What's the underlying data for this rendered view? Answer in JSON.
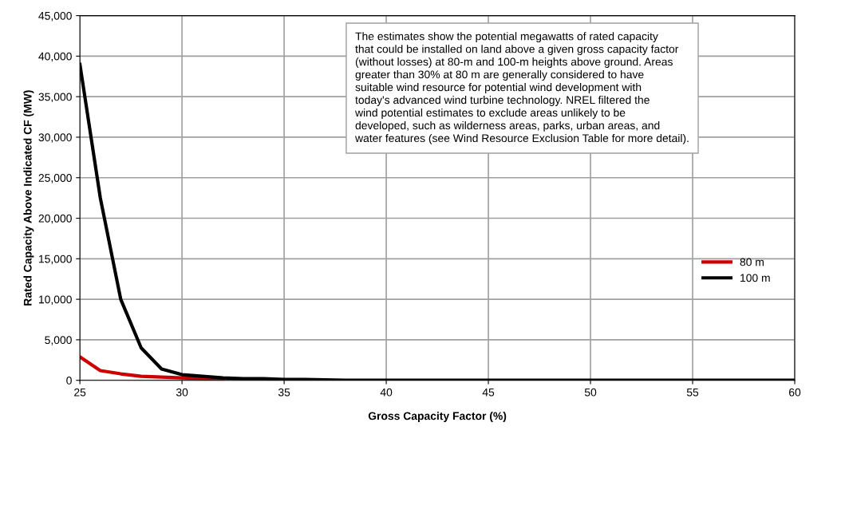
{
  "chart_data": {
    "type": "line",
    "xlabel": "Gross Capacity Factor (%)",
    "ylabel": "Rated Capacity Above Indicated CF (MW)",
    "x": [
      25,
      26,
      27,
      28,
      29,
      30,
      31,
      32,
      33,
      34,
      35,
      36,
      38,
      40,
      45,
      50,
      55,
      60
    ],
    "series": [
      {
        "name": "80 m",
        "color": "#cc0000",
        "values": [
          2900,
          1200,
          800,
          500,
          400,
          300,
          200,
          200,
          null,
          null,
          null,
          null,
          null,
          null,
          null,
          null,
          null,
          null
        ]
      },
      {
        "name": "100 m",
        "color": "#000000",
        "values": [
          39000,
          22500,
          10000,
          4000,
          1400,
          700,
          500,
          300,
          200,
          200,
          100,
          100,
          0,
          0,
          0,
          0,
          0,
          0
        ]
      }
    ],
    "xlim": [
      25,
      60
    ],
    "xticks": [
      25,
      30,
      35,
      40,
      45,
      50,
      55,
      60
    ],
    "ylim": [
      0,
      45000
    ],
    "yticks": [
      {
        "value": 0,
        "label": "0"
      },
      {
        "value": 5000,
        "label": "5,000"
      },
      {
        "value": 10000,
        "label": "10,000"
      },
      {
        "value": 15000,
        "label": "15,000"
      },
      {
        "value": 20000,
        "label": "20,000"
      },
      {
        "value": 25000,
        "label": "25,000"
      },
      {
        "value": 30000,
        "label": "30,000"
      },
      {
        "value": 35000,
        "label": "35,000"
      },
      {
        "value": 40000,
        "label": "40,000"
      },
      {
        "value": 45000,
        "label": "45,000"
      }
    ],
    "grid": true,
    "legend": "center right",
    "marker": "none",
    "line_style": "solid",
    "annotations": [
      "The estimates show the potential megawatts of rated capacity\nthat could be installed on land above a given gross capacity factor\n(without losses) at 80-m and 100-m heights above ground. Areas\ngreater than 30% at 80 m are generally considered to have\nsuitable wind resource for potential wind development with\ntoday's advanced wind turbine technology. NREL filtered the\nwind potential estimates to exclude areas unlikely to be\ndeveloped, such as wilderness areas, parks, urban areas, and\nwater features (see Wind Resource Exclusion Table for more detail)."
    ]
  }
}
